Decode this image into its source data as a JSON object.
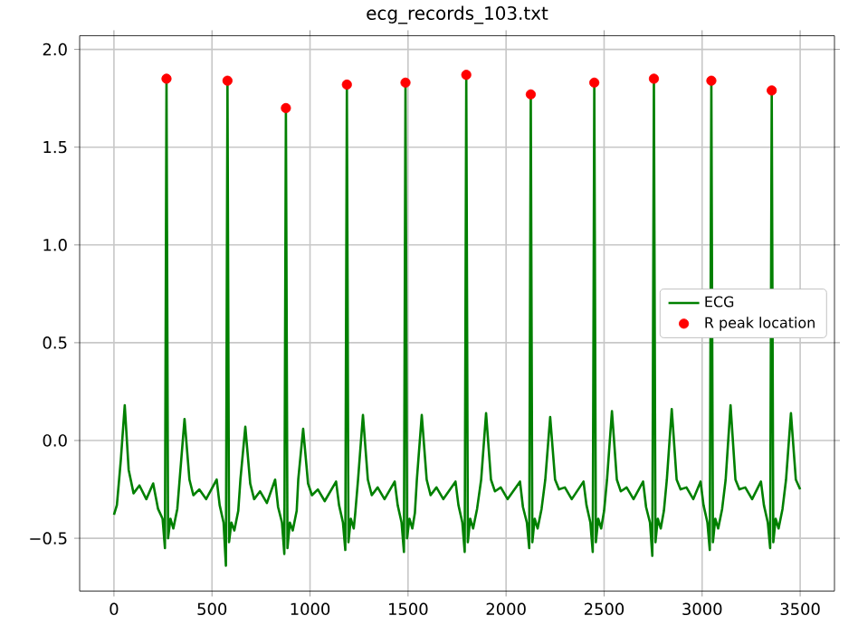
{
  "chart_data": {
    "type": "line",
    "title": "ecg_records_103.txt",
    "xlim": [
      -175,
      3675
    ],
    "ylim": [
      -0.77,
      2.07
    ],
    "xticks": [
      0,
      500,
      1000,
      1500,
      2000,
      2500,
      3000,
      3500
    ],
    "yticks": [
      {
        "value": -0.5,
        "label": "−0.5"
      },
      {
        "value": 0,
        "label": "0.0"
      },
      {
        "value": 0.5,
        "label": "0.5"
      },
      {
        "value": 1,
        "label": "1.0"
      },
      {
        "value": 1.5,
        "label": "1.5"
      },
      {
        "value": 2,
        "label": "2.0"
      }
    ],
    "grid": true,
    "legend": "right",
    "series": [
      {
        "name": "ECG",
        "color": "#008000",
        "marker": "none",
        "line_style": "solid",
        "x": [
          0,
          15,
          35,
          55,
          75,
          100,
          130,
          165,
          200,
          225,
          248,
          260,
          268,
          276,
          288,
          303,
          323,
          335,
          360,
          385,
          405,
          435,
          470,
          524,
          539,
          559,
          571,
          579,
          587,
          599,
          614,
          634,
          645,
          670,
          695,
          715,
          745,
          780,
          822,
          837,
          857,
          869,
          877,
          885,
          897,
          912,
          932,
          940,
          965,
          990,
          1010,
          1040,
          1075,
          1133,
          1148,
          1168,
          1180,
          1188,
          1196,
          1208,
          1223,
          1230,
          1245,
          1270,
          1295,
          1315,
          1345,
          1380,
          1432,
          1447,
          1467,
          1479,
          1487,
          1495,
          1507,
          1522,
          1535,
          1545,
          1570,
          1595,
          1615,
          1645,
          1680,
          1742,
          1757,
          1777,
          1789,
          1797,
          1805,
          1817,
          1832,
          1852,
          1873,
          1898,
          1923,
          1943,
          1973,
          2008,
          2071,
          2086,
          2106,
          2118,
          2126,
          2134,
          2146,
          2161,
          2181,
          2200,
          2225,
          2250,
          2270,
          2300,
          2335,
          2395,
          2410,
          2430,
          2442,
          2450,
          2458,
          2470,
          2485,
          2500,
          2515,
          2540,
          2565,
          2585,
          2615,
          2650,
          2699,
          2714,
          2734,
          2746,
          2754,
          2762,
          2774,
          2789,
          2805,
          2820,
          2845,
          2870,
          2890,
          2920,
          2955,
          2992,
          3007,
          3027,
          3039,
          3047,
          3055,
          3067,
          3082,
          3102,
          3120,
          3145,
          3170,
          3190,
          3220,
          3255,
          3300,
          3315,
          3335,
          3347,
          3355,
          3363,
          3375,
          3390,
          3410,
          3428,
          3453,
          3478,
          3500
        ],
        "values": [
          -0.38,
          -0.33,
          -0.1,
          0.18,
          -0.15,
          -0.27,
          -0.23,
          -0.3,
          -0.22,
          -0.35,
          -0.4,
          -0.55,
          1.85,
          -0.5,
          -0.4,
          -0.45,
          -0.35,
          -0.2,
          0.11,
          -0.2,
          -0.28,
          -0.25,
          -0.3,
          -0.2,
          -0.33,
          -0.42,
          -0.64,
          1.84,
          -0.52,
          -0.42,
          -0.46,
          -0.36,
          -0.2,
          0.07,
          -0.22,
          -0.3,
          -0.26,
          -0.32,
          -0.2,
          -0.34,
          -0.42,
          -0.58,
          1.7,
          -0.55,
          -0.42,
          -0.46,
          -0.36,
          -0.2,
          0.06,
          -0.22,
          -0.28,
          -0.25,
          -0.31,
          -0.21,
          -0.33,
          -0.42,
          -0.56,
          1.82,
          -0.52,
          -0.4,
          -0.45,
          -0.38,
          -0.2,
          0.13,
          -0.2,
          -0.28,
          -0.24,
          -0.3,
          -0.21,
          -0.33,
          -0.42,
          -0.57,
          1.83,
          -0.5,
          -0.4,
          -0.45,
          -0.37,
          -0.2,
          0.13,
          -0.2,
          -0.28,
          -0.24,
          -0.3,
          -0.21,
          -0.33,
          -0.42,
          -0.57,
          1.87,
          -0.52,
          -0.4,
          -0.45,
          -0.35,
          -0.2,
          0.14,
          -0.2,
          -0.26,
          -0.24,
          -0.3,
          -0.21,
          -0.34,
          -0.42,
          -0.55,
          1.77,
          -0.52,
          -0.4,
          -0.45,
          -0.35,
          -0.2,
          0.12,
          -0.2,
          -0.25,
          -0.24,
          -0.3,
          -0.21,
          -0.33,
          -0.42,
          -0.57,
          1.83,
          -0.52,
          -0.4,
          -0.45,
          -0.36,
          -0.2,
          0.15,
          -0.2,
          -0.26,
          -0.24,
          -0.3,
          -0.21,
          -0.34,
          -0.42,
          -0.59,
          1.85,
          -0.52,
          -0.4,
          -0.45,
          -0.36,
          -0.2,
          0.16,
          -0.2,
          -0.25,
          -0.24,
          -0.3,
          -0.21,
          -0.33,
          -0.42,
          -0.56,
          1.84,
          -0.52,
          -0.4,
          -0.45,
          -0.35,
          -0.2,
          0.18,
          -0.2,
          -0.25,
          -0.24,
          -0.3,
          -0.21,
          -0.33,
          -0.42,
          -0.55,
          1.79,
          -0.52,
          -0.4,
          -0.45,
          -0.35,
          -0.2,
          0.14,
          -0.2,
          -0.25
        ]
      },
      {
        "name": "R peak location",
        "type": "scatter",
        "color": "#ff0000",
        "marker": "circle",
        "x": [
          268,
          579,
          877,
          1188,
          1487,
          1797,
          2126,
          2450,
          2754,
          3047,
          3355
        ],
        "values": [
          1.85,
          1.84,
          1.7,
          1.82,
          1.83,
          1.87,
          1.77,
          1.83,
          1.85,
          1.84,
          1.79
        ]
      }
    ]
  }
}
